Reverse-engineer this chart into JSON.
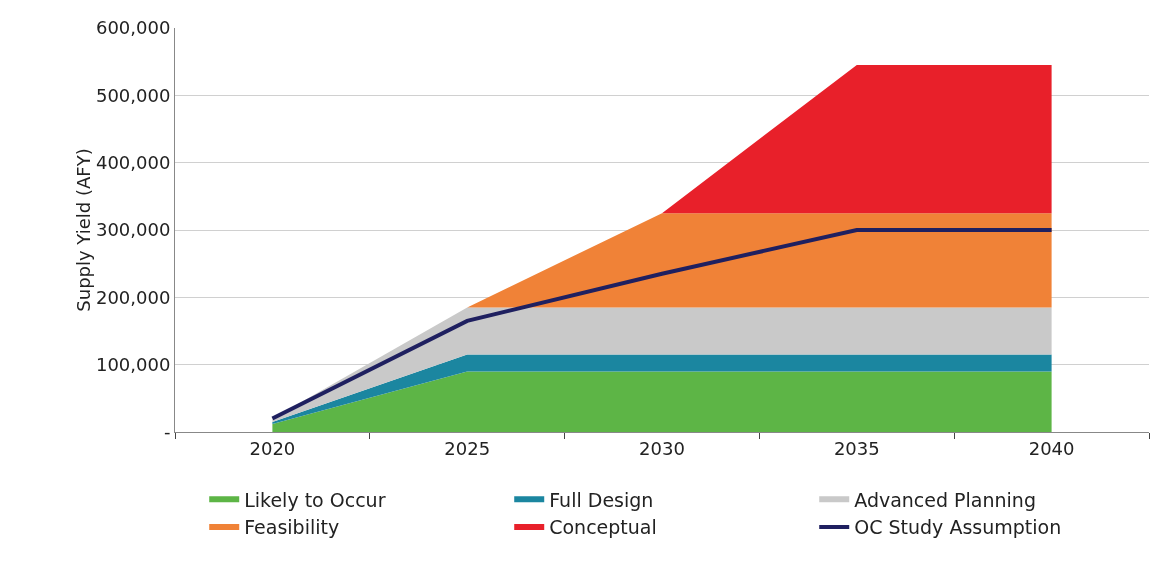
{
  "chart_data": {
    "type": "area",
    "stacked": true,
    "ylabel": "Supply Yield (AFY)",
    "categories": [
      "2020",
      "2025",
      "2030",
      "2035",
      "2040"
    ],
    "series": [
      {
        "name": "Likely to Occur",
        "color": "#5db546",
        "values": [
          12000,
          90000,
          90000,
          90000,
          90000
        ]
      },
      {
        "name": "Full Design",
        "color": "#1b86a0",
        "values": [
          3000,
          25000,
          25000,
          25000,
          25000
        ]
      },
      {
        "name": "Advanced Planning",
        "color": "#c9c9c9",
        "values": [
          5000,
          70000,
          70000,
          70000,
          70000
        ]
      },
      {
        "name": "Feasibility",
        "color": "#f08237",
        "values": [
          0,
          0,
          140000,
          140000,
          140000
        ]
      },
      {
        "name": "Conceptual",
        "color": "#e8202a",
        "values": [
          0,
          0,
          0,
          220000,
          220000
        ]
      },
      {
        "name": "OC Study Assumption",
        "color": "#1f2060",
        "type": "line",
        "values": [
          20000,
          165000,
          235000,
          300000,
          300000
        ]
      }
    ],
    "ylim": [
      0,
      600000
    ],
    "yticks": [
      {
        "value": 0,
        "label": "-"
      },
      {
        "value": 100000,
        "label": "100,000"
      },
      {
        "value": 200000,
        "label": "200,000"
      },
      {
        "value": 300000,
        "label": "300,000"
      },
      {
        "value": 400000,
        "label": "400,000"
      },
      {
        "value": 500000,
        "label": "500,000"
      },
      {
        "value": 600000,
        "label": "600,000"
      }
    ],
    "grid": "y",
    "legend": "bottom",
    "marker": "none",
    "line_style": "solid"
  }
}
